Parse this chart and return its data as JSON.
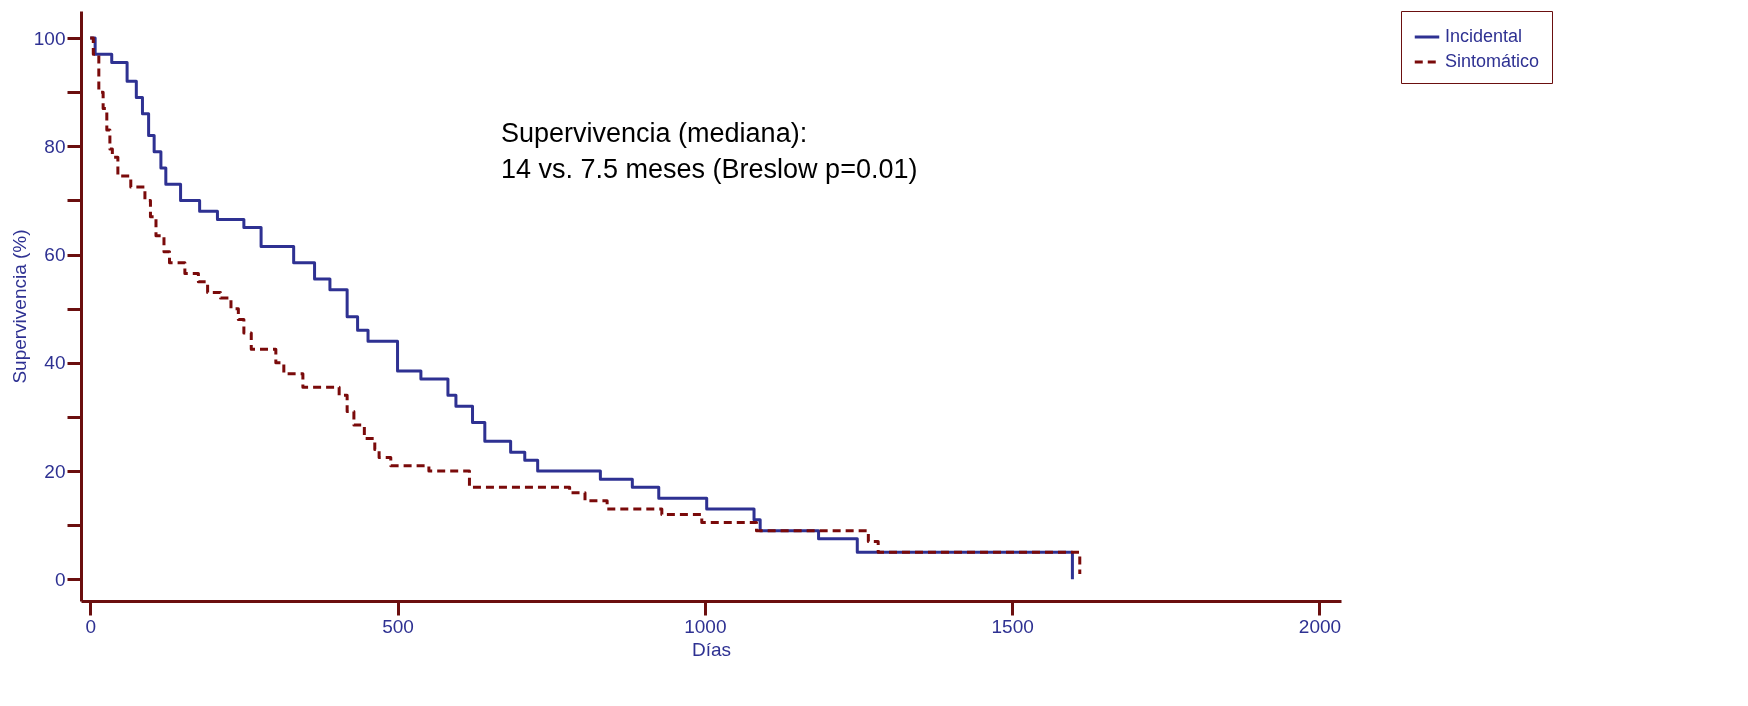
{
  "chart_data": {
    "type": "step",
    "xlabel": "Días",
    "ylabel": "Supervivencia (%)",
    "xlim": [
      -15,
      2035
    ],
    "xticks": [
      0,
      500,
      1000,
      1500,
      2000
    ],
    "ylim": [
      -4,
      105
    ],
    "yticks": [
      0,
      {
        "value": 10,
        "label": null
      },
      20,
      {
        "value": 30,
        "label": null
      },
      40,
      {
        "value": 50,
        "label": null
      },
      60,
      {
        "value": 70,
        "label": null
      },
      80,
      {
        "value": 90,
        "label": null
      },
      100
    ],
    "grid": false,
    "legend": "right",
    "annotations": [
      "Supervivencia (mediana):",
      "14 vs. 7.5 meses (Breslow p=0.01)"
    ],
    "series": [
      {
        "name": "Incidental",
        "color": "#2e3192",
        "line_style": "solid",
        "x": [
          0,
          8,
          35,
          60,
          75,
          85,
          95,
          104,
          115,
          123,
          147,
          178,
          207,
          250,
          278,
          331,
          365,
          390,
          418,
          435,
          452,
          500,
          538,
          582,
          595,
          622,
          642,
          684,
          707,
          728,
          830,
          882,
          925,
          1003,
          1080,
          1090,
          1185,
          1248,
          1598
        ],
        "values": [
          100,
          97,
          95.5,
          92,
          89,
          86,
          82,
          79,
          76,
          73,
          70,
          68,
          66.5,
          65,
          61.5,
          58.5,
          55.5,
          53.5,
          48.5,
          46,
          44,
          38.5,
          37,
          34,
          32,
          29,
          25.5,
          23.5,
          22,
          20,
          18.5,
          17,
          15,
          13,
          11,
          9,
          7.5,
          5,
          0
        ]
      },
      {
        "name": "Sintomático",
        "color": "#7a0a0a",
        "line_style": "dashed",
        "x": [
          0,
          5,
          14,
          21,
          27,
          32,
          36,
          45,
          66,
          89,
          98,
          107,
          120,
          129,
          154,
          176,
          191,
          212,
          229,
          241,
          250,
          262,
          302,
          315,
          346,
          405,
          418,
          429,
          446,
          463,
          470,
          489,
          551,
          617,
          780,
          805,
          841,
          930,
          995,
          1084,
          1266,
          1282,
          1610
        ],
        "values": [
          100,
          97,
          90,
          87,
          83,
          79.5,
          78,
          74.5,
          72.5,
          70,
          67,
          63.5,
          60.5,
          58.5,
          56.5,
          55,
          53,
          52,
          50,
          48,
          45.5,
          42.5,
          40,
          38,
          35.5,
          34,
          31,
          28.5,
          26,
          24,
          22.5,
          21,
          20,
          17,
          16,
          14.5,
          13,
          12,
          10.5,
          9,
          7,
          5,
          1
        ]
      }
    ]
  }
}
